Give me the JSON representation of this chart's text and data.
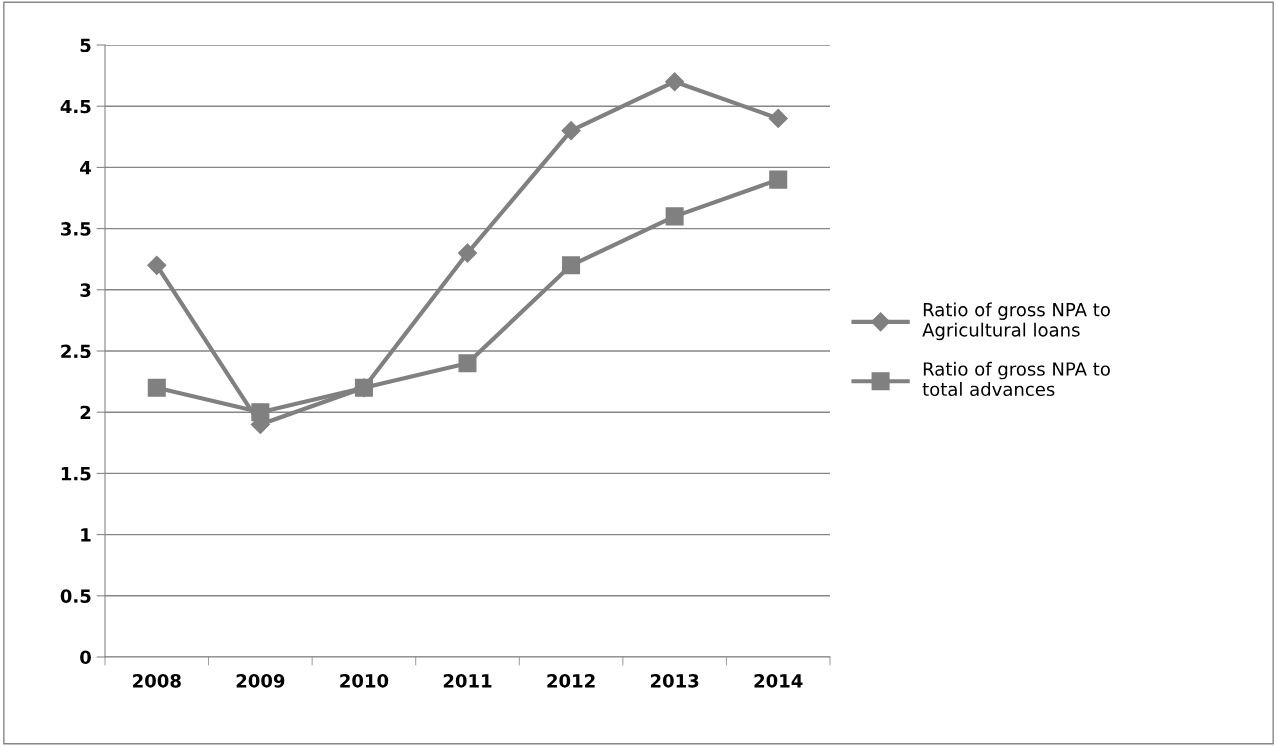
{
  "chart_data": {
    "type": "line",
    "categories": [
      "2008",
      "2009",
      "2010",
      "2011",
      "2012",
      "2013",
      "2014"
    ],
    "series": [
      {
        "name": "Ratio of gross NPA to Agricultural loans",
        "color": "#808080",
        "marker": "diamond",
        "values": [
          3.2,
          1.9,
          2.2,
          3.3,
          4.3,
          4.7,
          4.4
        ]
      },
      {
        "name": "Ratio of gross NPA to total advances",
        "color": "#808080",
        "marker": "square",
        "values": [
          2.2,
          2.0,
          2.2,
          2.4,
          3.2,
          3.6,
          3.9
        ]
      }
    ],
    "ylim": [
      0,
      5
    ],
    "yticks": [
      0,
      0.5,
      1,
      1.5,
      2,
      2.5,
      3,
      3.5,
      4,
      4.5,
      5
    ],
    "grid": "y",
    "legend": "right",
    "line_style": "solid"
  }
}
